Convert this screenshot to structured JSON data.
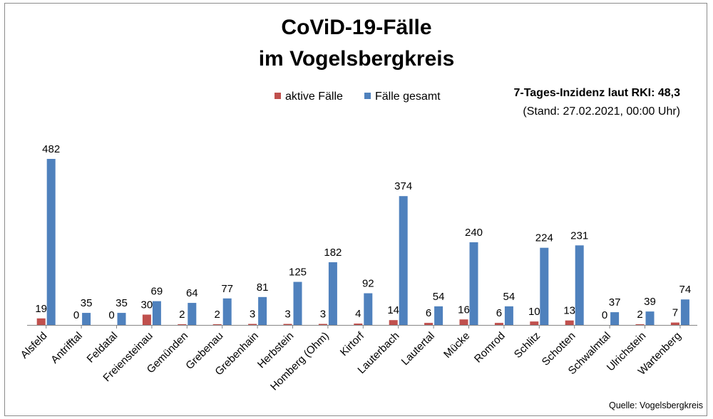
{
  "chart_data": {
    "type": "bar",
    "title_line1": "CoViD-19-Fälle",
    "title_line2": "im Vogelsbergkreis",
    "categories": [
      "Alsfeld",
      "Antrifftal",
      "Feldatal",
      "Freiensteinau",
      "Gemünden",
      "Grebenau",
      "Grebenhain",
      "Herbstein",
      "Homberg (Ohm)",
      "Kirtorf",
      "Lauterbach",
      "Lautertal",
      "Mücke",
      "Romrod",
      "Schlitz",
      "Schotten",
      "Schwalmtal",
      "Ulrichstein",
      "Wartenberg"
    ],
    "series": [
      {
        "name": "aktive Fälle",
        "color": "#c0504d",
        "values": [
          19,
          0,
          0,
          30,
          2,
          2,
          3,
          3,
          3,
          4,
          14,
          6,
          16,
          6,
          10,
          13,
          0,
          2,
          7
        ]
      },
      {
        "name": "Fälle gesamt",
        "color": "#4f81bd",
        "values": [
          482,
          35,
          35,
          69,
          64,
          77,
          81,
          125,
          182,
          92,
          374,
          54,
          240,
          54,
          224,
          231,
          37,
          39,
          74
        ]
      }
    ],
    "ylim": [
      0,
      482
    ],
    "grid": false,
    "legend_position": "top",
    "data_labels": true
  },
  "info": {
    "incidence": "7-Tages-Inzidenz laut RKI: 48,3",
    "stand": "(Stand: 27.02.2021, 00:00 Uhr)"
  },
  "source": "Quelle: Vogelsbergkreis"
}
